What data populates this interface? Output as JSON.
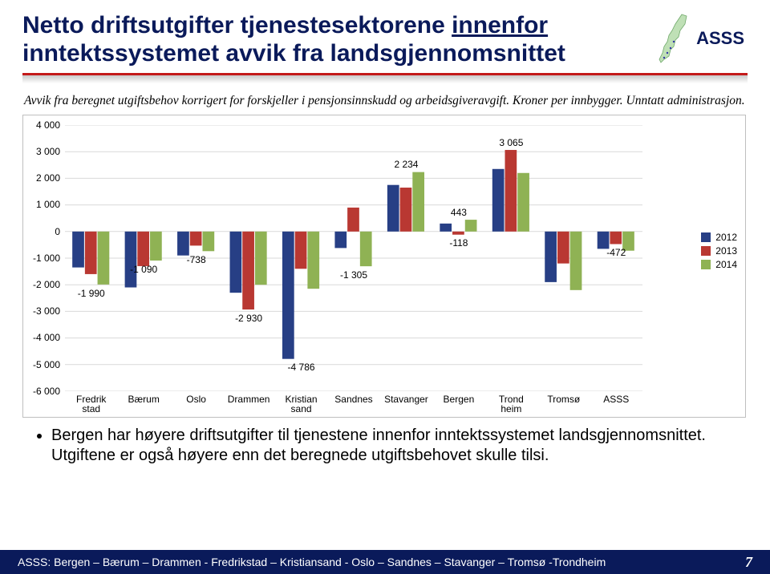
{
  "title_line1": "Netto driftsutgifter tjenestesektorene ",
  "title_underlined": "innenfor",
  "title_line2": "inntektssystemet avvik fra landsgjennomsnittet",
  "logo_text": "ASSS",
  "subtitle": "Avvik fra beregnet utgiftsbehov korrigert for forskjeller i pensjonsinnskudd og arbeidsgiveravgift. Kroner per innbygger. Unntatt administrasjon.",
  "chart": {
    "type": "bar",
    "categories": [
      "Fredrik\nstad",
      "Bærum",
      "Oslo",
      "Drammen",
      "Kristian\nsand",
      "Sandnes",
      "Stavanger",
      "Bergen",
      "Trond\nheim",
      "Tromsø",
      "ASSS"
    ],
    "category_labels": [
      {
        "text": "Fredrik",
        "text2": "stad"
      },
      {
        "text": "Bærum",
        "text2": ""
      },
      {
        "text": "Oslo",
        "text2": ""
      },
      {
        "text": "Drammen",
        "text2": ""
      },
      {
        "text": "Kristian",
        "text2": "sand"
      },
      {
        "text": "Sandnes",
        "text2": ""
      },
      {
        "text": "Stavanger",
        "text2": ""
      },
      {
        "text": "Bergen",
        "text2": ""
      },
      {
        "text": "Trond",
        "text2": "heim"
      },
      {
        "text": "Tromsø",
        "text2": ""
      },
      {
        "text": "ASSS",
        "text2": ""
      }
    ],
    "series": [
      {
        "name": "2012",
        "color": "#273f85",
        "values": [
          -1350,
          -2100,
          -900,
          -2300,
          -4786,
          -620,
          1750,
          300,
          2350,
          -1900,
          -650
        ]
      },
      {
        "name": "2013",
        "color": "#b93832",
        "values": [
          -1600,
          -1300,
          -530,
          -2930,
          -1400,
          900,
          1650,
          -118,
          3065,
          -1200,
          -472
        ]
      },
      {
        "name": "2014",
        "color": "#8fb254",
        "values": [
          -1990,
          -1090,
          -738,
          -2000,
          -2150,
          -1305,
          2234,
          443,
          2200,
          -2200,
          -720
        ]
      }
    ],
    "value_labels": [
      {
        "text": "-1 990",
        "cat": 0,
        "y": -1990,
        "below": true
      },
      {
        "text": "-1 090",
        "cat": 1,
        "y": -1090,
        "below": true
      },
      {
        "text": "-738",
        "cat": 2,
        "y": -738,
        "below": true
      },
      {
        "text": "-4 786",
        "cat": 4,
        "y": -4786,
        "below": true
      },
      {
        "text": "-2 930",
        "cat": 3,
        "y": -2930,
        "below": true
      },
      {
        "text": "-1 305",
        "cat": 5,
        "y": -1305,
        "below": true
      },
      {
        "text": "2 234",
        "cat": 6,
        "y": 2234,
        "below": false
      },
      {
        "text": "443",
        "cat": 7,
        "y": 443,
        "below": false
      },
      {
        "text": "-118",
        "cat": 7,
        "y": -118,
        "below": true
      },
      {
        "text": "3 065",
        "cat": 8,
        "y": 3065,
        "below": false
      },
      {
        "text": "-472",
        "cat": 10,
        "y": -472,
        "below": true
      }
    ],
    "ylim": [
      -6000,
      4000
    ],
    "ytick_step": 1000,
    "ytick_labels": [
      "4 000",
      "3 000",
      "2 000",
      "1 000",
      "0",
      "-1 000",
      "-2 000",
      "-3 000",
      "-4 000",
      "-5 000",
      "-6 000"
    ],
    "grid_color": "#d9d9d9",
    "bg": "#ffffff",
    "bar_group_width": 0.72
  },
  "bullet_text_1": "Bergen har høyere driftsutgifter til tjenestene innenfor inntektssystemet landsgjennomsnittet. Utgiftene er også høyere enn det beregnede utgiftsbehovet skulle tilsi.",
  "footer_text": "ASSS: Bergen – Bærum – Drammen - Fredrikstad – Kristiansand - Oslo – Sandnes – Stavanger – Tromsø -Trondheim",
  "page_number": "7",
  "legend_labels": [
    "2012",
    "2013",
    "2014"
  ],
  "legend_colors": [
    "#273f85",
    "#b93832",
    "#8fb254"
  ]
}
